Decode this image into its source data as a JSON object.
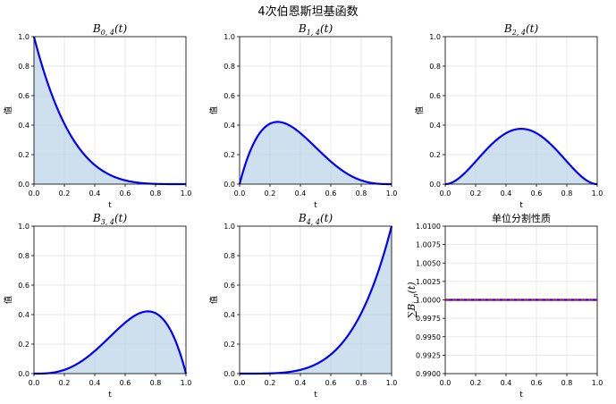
{
  "figure": {
    "title": "4次伯恩斯坦基函数"
  },
  "chart_data": [
    {
      "type": "area",
      "title_base": "B",
      "title_sub": "0, 4",
      "title_suffix": "(t)",
      "xlabel": "t",
      "ylabel": "值",
      "xlim": [
        0,
        1
      ],
      "ylim": [
        0,
        1
      ],
      "xticks": [
        "0.0",
        "0.2",
        "0.4",
        "0.6",
        "0.8",
        "1.0"
      ],
      "yticks": [
        "0.0",
        "0.2",
        "0.4",
        "0.6",
        "0.8",
        "1.0"
      ],
      "grid": true,
      "i": 0,
      "n": 4,
      "x": [
        0,
        0.1,
        0.2,
        0.3,
        0.4,
        0.5,
        0.6,
        0.7,
        0.8,
        0.9,
        1.0
      ],
      "y": [
        1.0,
        0.6561,
        0.4096,
        0.2401,
        0.1296,
        0.0625,
        0.0256,
        0.0081,
        0.0016,
        0.0001,
        0.0
      ]
    },
    {
      "type": "area",
      "title_base": "B",
      "title_sub": "1, 4",
      "title_suffix": "(t)",
      "xlabel": "t",
      "ylabel": "值",
      "xlim": [
        0,
        1
      ],
      "ylim": [
        0,
        1
      ],
      "xticks": [
        "0.0",
        "0.2",
        "0.4",
        "0.6",
        "0.8",
        "1.0"
      ],
      "yticks": [
        "0.0",
        "0.2",
        "0.4",
        "0.6",
        "0.8",
        "1.0"
      ],
      "grid": true,
      "i": 1,
      "n": 4,
      "x": [
        0,
        0.1,
        0.2,
        0.25,
        0.3,
        0.4,
        0.5,
        0.6,
        0.7,
        0.8,
        0.9,
        1.0
      ],
      "y": [
        0.0,
        0.2916,
        0.4096,
        0.4219,
        0.4116,
        0.3456,
        0.25,
        0.1536,
        0.0756,
        0.0256,
        0.0036,
        0.0
      ]
    },
    {
      "type": "area",
      "title_base": "B",
      "title_sub": "2, 4",
      "title_suffix": "(t)",
      "xlabel": "t",
      "ylabel": "值",
      "xlim": [
        0,
        1
      ],
      "ylim": [
        0,
        1
      ],
      "xticks": [
        "0.0",
        "0.2",
        "0.4",
        "0.6",
        "0.8",
        "1.0"
      ],
      "yticks": [
        "0.0",
        "0.2",
        "0.4",
        "0.6",
        "0.8",
        "1.0"
      ],
      "grid": true,
      "i": 2,
      "n": 4,
      "x": [
        0,
        0.1,
        0.2,
        0.3,
        0.4,
        0.5,
        0.6,
        0.7,
        0.8,
        0.9,
        1.0
      ],
      "y": [
        0.0,
        0.0486,
        0.1536,
        0.2646,
        0.3456,
        0.375,
        0.3456,
        0.2646,
        0.1536,
        0.0486,
        0.0
      ]
    },
    {
      "type": "area",
      "title_base": "B",
      "title_sub": "3, 4",
      "title_suffix": "(t)",
      "xlabel": "t",
      "ylabel": "值",
      "xlim": [
        0,
        1
      ],
      "ylim": [
        0,
        1
      ],
      "xticks": [
        "0.0",
        "0.2",
        "0.4",
        "0.6",
        "0.8",
        "1.0"
      ],
      "yticks": [
        "0.0",
        "0.2",
        "0.4",
        "0.6",
        "0.8",
        "1.0"
      ],
      "grid": true,
      "i": 3,
      "n": 4,
      "x": [
        0,
        0.1,
        0.2,
        0.3,
        0.4,
        0.5,
        0.6,
        0.7,
        0.75,
        0.8,
        0.9,
        1.0
      ],
      "y": [
        0.0,
        0.0036,
        0.0256,
        0.0756,
        0.1536,
        0.25,
        0.3456,
        0.4116,
        0.4219,
        0.4096,
        0.2916,
        0.0
      ]
    },
    {
      "type": "area",
      "title_base": "B",
      "title_sub": "4, 4",
      "title_suffix": "(t)",
      "xlabel": "t",
      "ylabel": "值",
      "xlim": [
        0,
        1
      ],
      "ylim": [
        0,
        1
      ],
      "xticks": [
        "0.0",
        "0.2",
        "0.4",
        "0.6",
        "0.8",
        "1.0"
      ],
      "yticks": [
        "0.0",
        "0.2",
        "0.4",
        "0.6",
        "0.8",
        "1.0"
      ],
      "grid": true,
      "i": 4,
      "n": 4,
      "x": [
        0,
        0.1,
        0.2,
        0.3,
        0.4,
        0.5,
        0.6,
        0.7,
        0.8,
        0.9,
        1.0
      ],
      "y": [
        0.0,
        0.0001,
        0.0016,
        0.0081,
        0.0256,
        0.0625,
        0.1296,
        0.2401,
        0.4096,
        0.6561,
        1.0
      ]
    },
    {
      "type": "line",
      "title_plain": "单位分割性质",
      "xlabel": "t",
      "ylabel_base": "∑B",
      "ylabel_sub": "i, n",
      "ylabel_suffix": "(t)",
      "xlim": [
        0,
        1
      ],
      "ylim": [
        0.99,
        1.01
      ],
      "xticks": [
        "0.0",
        "0.2",
        "0.4",
        "0.6",
        "0.8",
        "1.0"
      ],
      "yticks": [
        "0.9900",
        "0.9925",
        "0.9950",
        "0.9975",
        "1.0000",
        "1.0025",
        "1.0050",
        "1.0075",
        "1.0100"
      ],
      "grid": true,
      "x": [
        0,
        1
      ],
      "y": [
        1.0,
        1.0
      ],
      "reference": 1.0,
      "colors": {
        "sum_line": "#0000ff",
        "reference_line": "#ff0000"
      }
    }
  ],
  "style": {
    "curve_color": "#0000ff",
    "fill_color": "#b3cfe3"
  }
}
